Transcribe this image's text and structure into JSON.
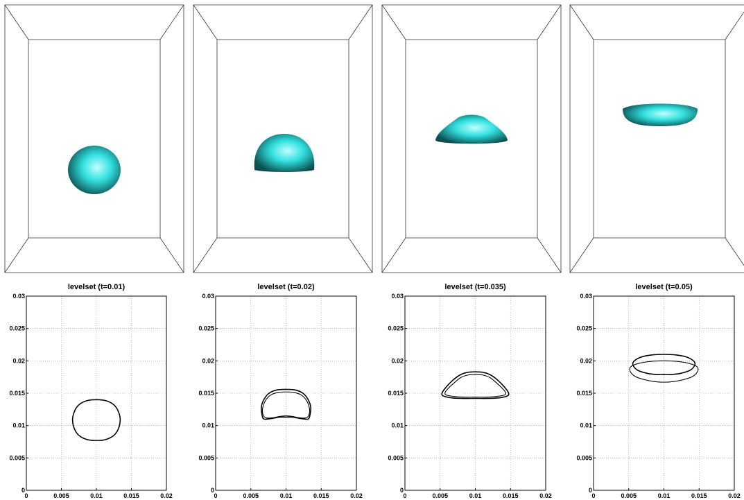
{
  "chart_data": [
    {
      "type": "line",
      "title": "levelset (t=0.01)",
      "xlim": [
        0,
        0.02
      ],
      "ylim": [
        0,
        0.03
      ],
      "x_ticks": [
        "0",
        "0.005",
        "0.01",
        "0.015",
        "0.02"
      ],
      "y_ticks": [
        "0",
        "0.005",
        "0.01",
        "0.015",
        "0.02",
        "0.025",
        "0.03"
      ],
      "grid": true,
      "series": [
        {
          "contour": [
            [
              0.01,
              0.014
            ],
            [
              0.0115,
              0.0138
            ],
            [
              0.0126,
              0.0131
            ],
            [
              0.0132,
              0.012
            ],
            [
              0.0134,
              0.0108
            ],
            [
              0.0131,
              0.0094
            ],
            [
              0.0124,
              0.0084
            ],
            [
              0.0112,
              0.0078
            ],
            [
              0.01,
              0.0077
            ],
            [
              0.0088,
              0.0078
            ],
            [
              0.0076,
              0.0084
            ],
            [
              0.0069,
              0.0094
            ],
            [
              0.0066,
              0.0108
            ],
            [
              0.0068,
              0.012
            ],
            [
              0.0074,
              0.0131
            ],
            [
              0.0085,
              0.0138
            ],
            [
              0.01,
              0.014
            ]
          ]
        }
      ]
    },
    {
      "type": "line",
      "title": "levelset (t=0.02)",
      "xlim": [
        0,
        0.02
      ],
      "ylim": [
        0,
        0.03
      ],
      "x_ticks": [
        "0",
        "0.005",
        "0.01",
        "0.015",
        "0.02"
      ],
      "y_ticks": [
        "0",
        "0.005",
        "0.01",
        "0.015",
        "0.02",
        "0.025",
        "0.03"
      ],
      "grid": true,
      "series": [
        {
          "contour": [
            [
              0.01,
              0.0156
            ],
            [
              0.0113,
              0.0155
            ],
            [
              0.0124,
              0.015
            ],
            [
              0.0131,
              0.0141
            ],
            [
              0.0135,
              0.0129
            ],
            [
              0.0134,
              0.0116
            ],
            [
              0.0131,
              0.011
            ],
            [
              0.012,
              0.0111
            ],
            [
              0.011,
              0.0113
            ],
            [
              0.01,
              0.0113
            ],
            [
              0.009,
              0.0113
            ],
            [
              0.008,
              0.0111
            ],
            [
              0.0069,
              0.011
            ],
            [
              0.0066,
              0.0116
            ],
            [
              0.0065,
              0.0129
            ],
            [
              0.0069,
              0.0141
            ],
            [
              0.0076,
              0.015
            ],
            [
              0.0087,
              0.0155
            ],
            [
              0.01,
              0.0156
            ]
          ]
        },
        {
          "contour": [
            [
              0.01,
              0.0152
            ],
            [
              0.0112,
              0.0151
            ],
            [
              0.0122,
              0.0147
            ],
            [
              0.0129,
              0.0139
            ],
            [
              0.0133,
              0.0128
            ],
            [
              0.0133,
              0.0118
            ],
            [
              0.0129,
              0.0112
            ],
            [
              0.0119,
              0.0112
            ],
            [
              0.011,
              0.0114
            ],
            [
              0.01,
              0.0115
            ],
            [
              0.009,
              0.0114
            ],
            [
              0.0081,
              0.0112
            ],
            [
              0.0071,
              0.0112
            ],
            [
              0.0067,
              0.0118
            ],
            [
              0.0067,
              0.0128
            ],
            [
              0.0071,
              0.0139
            ],
            [
              0.0078,
              0.0147
            ],
            [
              0.0088,
              0.0151
            ],
            [
              0.01,
              0.0152
            ]
          ]
        }
      ]
    },
    {
      "type": "line",
      "title": "levelset (t=0.035)",
      "xlim": [
        0,
        0.02
      ],
      "ylim": [
        0,
        0.03
      ],
      "x_ticks": [
        "0",
        "0.005",
        "0.01",
        "0.015",
        "0.02"
      ],
      "y_ticks": [
        "0",
        "0.005",
        "0.01",
        "0.015",
        "0.02",
        "0.025",
        "0.03"
      ],
      "grid": true,
      "series": [
        {
          "contour": [
            [
              0.01,
              0.0183
            ],
            [
              0.0112,
              0.0182
            ],
            [
              0.0122,
              0.0178
            ],
            [
              0.0132,
              0.017
            ],
            [
              0.0141,
              0.016
            ],
            [
              0.0147,
              0.0151
            ],
            [
              0.0146,
              0.0146
            ],
            [
              0.0135,
              0.0143
            ],
            [
              0.012,
              0.0142
            ],
            [
              0.01,
              0.0142
            ],
            [
              0.008,
              0.0142
            ],
            [
              0.0065,
              0.0143
            ],
            [
              0.0054,
              0.0146
            ],
            [
              0.0053,
              0.0151
            ],
            [
              0.0059,
              0.016
            ],
            [
              0.0068,
              0.017
            ],
            [
              0.0078,
              0.0178
            ],
            [
              0.0088,
              0.0182
            ],
            [
              0.01,
              0.0183
            ]
          ]
        },
        {
          "contour": [
            [
              0.01,
              0.0179
            ],
            [
              0.0111,
              0.0178
            ],
            [
              0.0121,
              0.0174
            ],
            [
              0.013,
              0.0166
            ],
            [
              0.0138,
              0.0158
            ],
            [
              0.0143,
              0.0151
            ],
            [
              0.0141,
              0.0147
            ],
            [
              0.013,
              0.0145
            ],
            [
              0.0118,
              0.0144
            ],
            [
              0.01,
              0.0144
            ],
            [
              0.0082,
              0.0144
            ],
            [
              0.007,
              0.0145
            ],
            [
              0.0059,
              0.0147
            ],
            [
              0.0057,
              0.0151
            ],
            [
              0.0062,
              0.0158
            ],
            [
              0.007,
              0.0166
            ],
            [
              0.0079,
              0.0174
            ],
            [
              0.0089,
              0.0178
            ],
            [
              0.01,
              0.0179
            ]
          ]
        }
      ]
    },
    {
      "type": "line",
      "title": "levelset (t=0.05)",
      "xlim": [
        0,
        0.02
      ],
      "ylim": [
        0,
        0.03
      ],
      "x_ticks": [
        "0",
        "0.005",
        "0.01",
        "0.015",
        "0.02"
      ],
      "y_ticks": [
        "0",
        "0.005",
        "0.01",
        "0.015",
        "0.02",
        "0.025",
        "0.03"
      ],
      "grid": true,
      "series": [
        {
          "contour": [
            [
              0.01,
              0.021
            ],
            [
              0.0118,
              0.0209
            ],
            [
              0.0132,
              0.0206
            ],
            [
              0.0142,
              0.02
            ],
            [
              0.0144,
              0.0194
            ],
            [
              0.0138,
              0.0186
            ],
            [
              0.0125,
              0.0181
            ],
            [
              0.0112,
              0.0179
            ],
            [
              0.01,
              0.0179
            ],
            [
              0.0088,
              0.0179
            ],
            [
              0.0075,
              0.0181
            ],
            [
              0.0062,
              0.0186
            ],
            [
              0.0056,
              0.0194
            ],
            [
              0.0058,
              0.02
            ],
            [
              0.0068,
              0.0206
            ],
            [
              0.0082,
              0.0209
            ],
            [
              0.01,
              0.021
            ]
          ]
        },
        {
          "contour": [
            [
              0.01,
              0.02
            ],
            [
              0.012,
              0.0199
            ],
            [
              0.0136,
              0.0196
            ],
            [
              0.0147,
              0.0191
            ],
            [
              0.0148,
              0.0184
            ],
            [
              0.0141,
              0.0176
            ],
            [
              0.0128,
              0.0171
            ],
            [
              0.0114,
              0.0168
            ],
            [
              0.01,
              0.0167
            ],
            [
              0.0086,
              0.0168
            ],
            [
              0.0072,
              0.0171
            ],
            [
              0.0059,
              0.0176
            ],
            [
              0.0052,
              0.0184
            ],
            [
              0.0053,
              0.0191
            ],
            [
              0.0064,
              0.0196
            ],
            [
              0.008,
              0.0199
            ],
            [
              0.01,
              0.02
            ]
          ]
        }
      ]
    }
  ],
  "render_3d": {
    "droplet_color": "#33e0e0",
    "droplet_highlight": "#aaffff",
    "droplet_shadow": "#0a5a5a"
  }
}
